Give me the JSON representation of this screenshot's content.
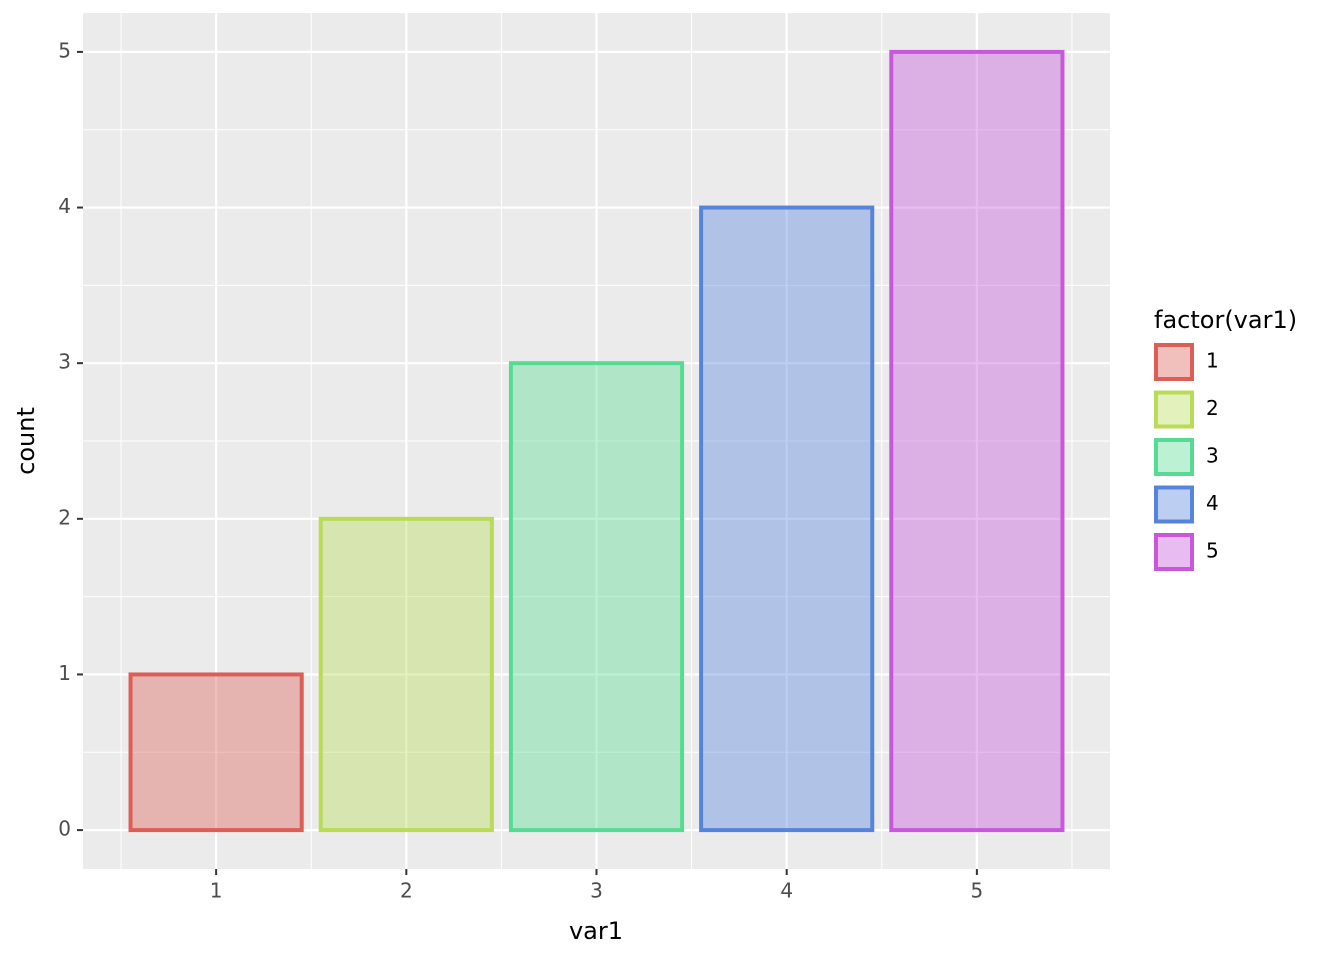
{
  "chart_data": {
    "type": "bar",
    "x_label": "var1",
    "y_label": "count",
    "x": [
      1,
      2,
      3,
      4,
      5
    ],
    "values": [
      1,
      2,
      3,
      4,
      5
    ],
    "colors": [
      "#db5f57",
      "#b9db57",
      "#57db94",
      "#5784db",
      "#c957db"
    ],
    "xlim": [
      0.3,
      5.7
    ],
    "xticks": [
      1,
      2,
      3,
      4,
      5
    ],
    "ylim": [
      -0.25,
      5.25
    ],
    "yticks": [
      0,
      1,
      2,
      3,
      4,
      5
    ],
    "grid": true,
    "legend": {
      "title": "factor(var1)",
      "labels": [
        "1",
        "2",
        "3",
        "4",
        "5"
      ],
      "position": "right"
    }
  }
}
